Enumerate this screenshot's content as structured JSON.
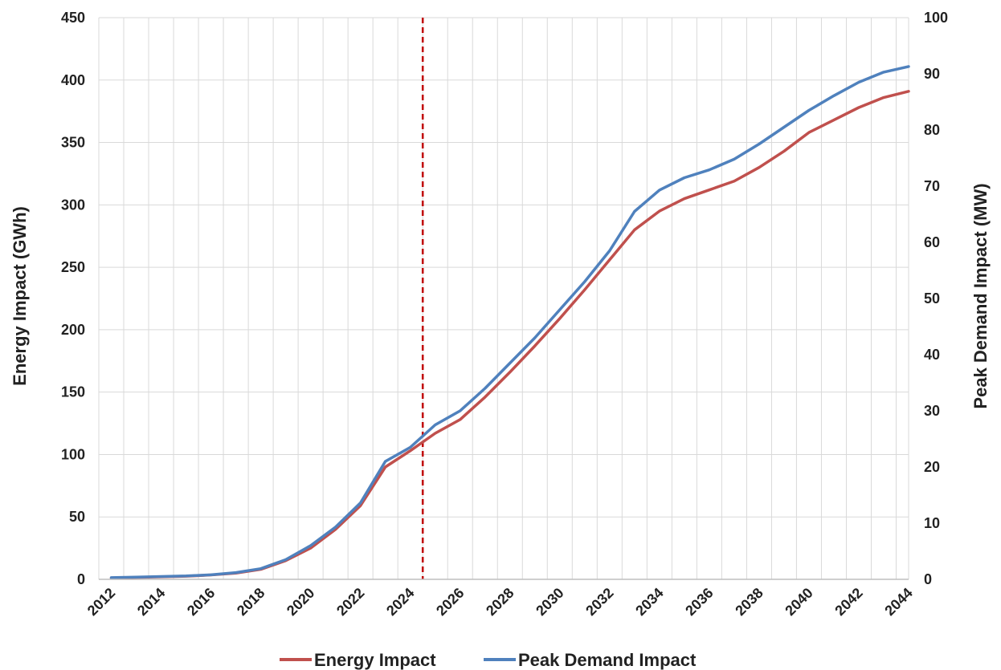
{
  "chart_data": {
    "type": "line",
    "title": "",
    "x": [
      2012,
      2013,
      2014,
      2015,
      2016,
      2017,
      2018,
      2019,
      2020,
      2021,
      2022,
      2023,
      2024,
      2025,
      2026,
      2027,
      2028,
      2029,
      2030,
      2031,
      2032,
      2033,
      2034,
      2035,
      2036,
      2037,
      2038,
      2039,
      2040,
      2041,
      2042,
      2043,
      2044
    ],
    "xticks": [
      "2012",
      "2014",
      "2016",
      "2018",
      "2020",
      "2022",
      "2024",
      "2026",
      "2028",
      "2030",
      "2032",
      "2034",
      "2036",
      "2038",
      "2040",
      "2042",
      "2044"
    ],
    "y_left": {
      "label": "Energy Impact (GWh)",
      "lim": [
        0,
        450
      ],
      "ticks": [
        "0",
        "50",
        "100",
        "150",
        "200",
        "250",
        "300",
        "350",
        "400",
        "450"
      ]
    },
    "y_right": {
      "label": "Peak Demand Impact (MW)",
      "lim": [
        0,
        100
      ],
      "ticks": [
        "0",
        "10",
        "20",
        "30",
        "40",
        "50",
        "60",
        "70",
        "80",
        "90",
        "100"
      ]
    },
    "series": [
      {
        "name": "Energy Impact",
        "axis": "left",
        "color": "#c0504d",
        "values": [
          1,
          1.5,
          2,
          2.5,
          3.5,
          5,
          8,
          15,
          25,
          40,
          59,
          90,
          103,
          117,
          128,
          146,
          166,
          187,
          209,
          232,
          256,
          280,
          295,
          305,
          312,
          319,
          330,
          343,
          358,
          368,
          378,
          386,
          391
        ]
      },
      {
        "name": "Peak Demand Impact",
        "axis": "right",
        "color": "#4f81bd",
        "values": [
          0.3,
          0.4,
          0.5,
          0.6,
          0.8,
          1.2,
          1.9,
          3.5,
          6,
          9.3,
          13.6,
          21,
          23.5,
          27.5,
          30,
          34,
          38.5,
          43,
          48,
          53,
          58.5,
          65.5,
          69.3,
          71.5,
          72.9,
          74.8,
          77.5,
          80.5,
          83.5,
          86.1,
          88.5,
          90.3,
          91.3
        ]
      }
    ],
    "marker_line": {
      "x": 2025,
      "style": "dashed",
      "color": "#c00000"
    },
    "grid": true,
    "legend_position": "bottom"
  }
}
